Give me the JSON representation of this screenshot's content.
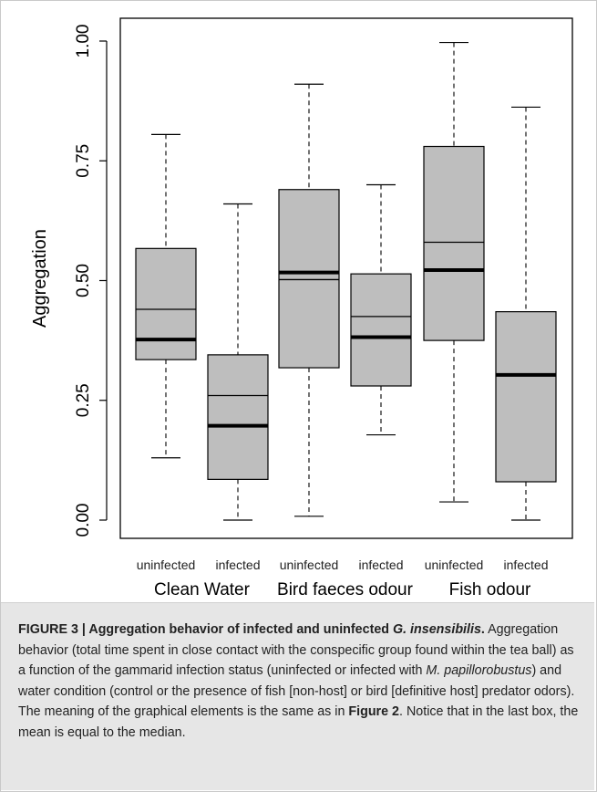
{
  "chart_data": {
    "type": "boxplot",
    "ylabel": "Aggregation",
    "ylim": [
      0.0,
      1.0
    ],
    "yticks": [
      "0.00",
      "0.25",
      "0.50",
      "0.75",
      "1.00"
    ],
    "ytick_values": [
      0.0,
      0.25,
      0.5,
      0.75,
      1.0
    ],
    "groups": [
      "Clean Water",
      "Bird faeces odour",
      "Fish odour"
    ],
    "boxes": [
      {
        "label": "uninfected",
        "group": "Clean Water",
        "min": 0.13,
        "q1": 0.335,
        "median": 0.377,
        "mean": 0.44,
        "q3": 0.567,
        "max": 0.805
      },
      {
        "label": "infected",
        "group": "Clean Water",
        "min": 0.0,
        "q1": 0.085,
        "median": 0.197,
        "mean": 0.26,
        "q3": 0.345,
        "max": 0.66
      },
      {
        "label": "uninfected",
        "group": "Bird faeces odour",
        "min": 0.008,
        "q1": 0.318,
        "median": 0.517,
        "mean": 0.502,
        "q3": 0.69,
        "max": 0.91
      },
      {
        "label": "infected",
        "group": "Bird faeces odour",
        "min": 0.178,
        "q1": 0.28,
        "median": 0.382,
        "mean": 0.425,
        "q3": 0.514,
        "max": 0.7
      },
      {
        "label": "uninfected",
        "group": "Fish odour",
        "min": 0.038,
        "q1": 0.375,
        "median": 0.522,
        "mean": 0.58,
        "q3": 0.78,
        "max": 0.997
      },
      {
        "label": "infected",
        "group": "Fish odour",
        "min": 0.0,
        "q1": 0.08,
        "median": 0.303,
        "mean": 0.303,
        "q3": 0.435,
        "max": 0.862
      }
    ],
    "box_fill": "#bebebe",
    "grid": false
  },
  "caption": {
    "figure_label": "FIGURE 3 |",
    "title_pre": " Aggregation behavior of infected and uninfected ",
    "title_species": "G. insensibilis",
    "title_end": ".",
    "body_1": " Aggregation behavior (total time spent in close contact with the conspecific group found within the tea ball) as a function of the gammarid infection status (uninfected or infected with ",
    "body_species": "M. papillorobustus",
    "body_2": ") and water condition (control or the presence of fish [non-host] or bird [definitive host] predator odors). The meaning of the graphical elements is the same as in ",
    "body_ref": "Figure 2",
    "body_3": ". Notice that in the last box, the mean is equal to the median."
  }
}
